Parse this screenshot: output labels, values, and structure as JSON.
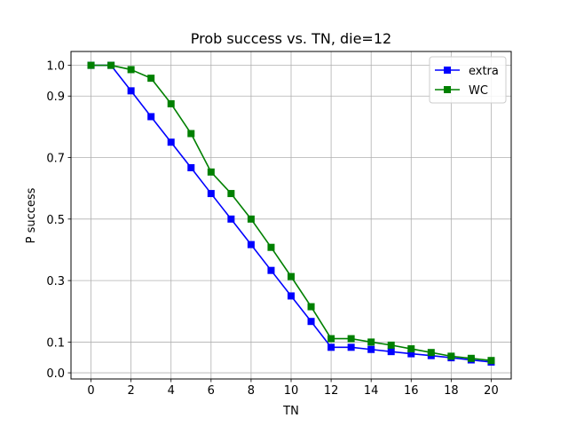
{
  "chart_data": {
    "type": "line",
    "title": "Prob success vs. TN, die=12",
    "xlabel": "TN",
    "ylabel": "P success",
    "xlim": [
      -1,
      21
    ],
    "ylim": [
      -0.02,
      1.045
    ],
    "xticks": [
      0,
      2,
      4,
      6,
      8,
      10,
      12,
      14,
      16,
      18,
      20
    ],
    "xtick_labels": [
      "0",
      "2",
      "4",
      "6",
      "8",
      "10",
      "12",
      "14",
      "16",
      "18",
      "20"
    ],
    "yticks": [
      0.0,
      0.1,
      0.3,
      0.5,
      0.7,
      0.9,
      1.0
    ],
    "ytick_labels": [
      "0.0",
      "0.1",
      "0.3",
      "0.5",
      "0.7",
      "0.9",
      "1.0"
    ],
    "grid": true,
    "legend_position": "top-right",
    "x": [
      0,
      1,
      2,
      3,
      4,
      5,
      6,
      7,
      8,
      9,
      10,
      11,
      12,
      13,
      14,
      15,
      16,
      17,
      18,
      19,
      20
    ],
    "series": [
      {
        "name": "extra",
        "color": "#0000ff",
        "marker": "square",
        "values": [
          1.0,
          1.0,
          0.917,
          0.833,
          0.75,
          0.667,
          0.583,
          0.5,
          0.417,
          0.333,
          0.25,
          0.167,
          0.083,
          0.083,
          0.076,
          0.069,
          0.062,
          0.056,
          0.049,
          0.042,
          0.035
        ]
      },
      {
        "name": "WC",
        "color": "#008000",
        "marker": "square",
        "values": [
          1.0,
          1.0,
          0.986,
          0.958,
          0.875,
          0.778,
          0.653,
          0.583,
          0.5,
          0.408,
          0.313,
          0.215,
          0.111,
          0.111,
          0.1,
          0.09,
          0.078,
          0.066,
          0.054,
          0.047,
          0.04
        ]
      }
    ]
  }
}
